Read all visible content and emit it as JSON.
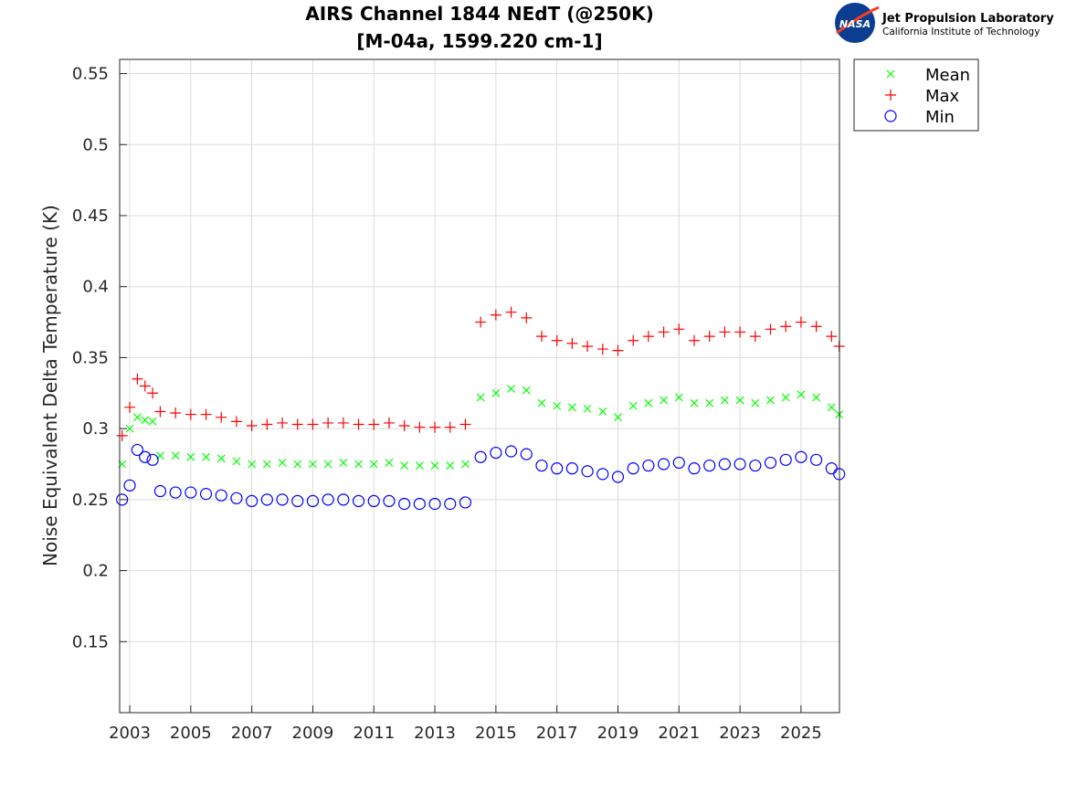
{
  "logo": {
    "badge": "NASA",
    "org": "Jet Propulsion Laboratory",
    "sub": "California Institute of Technology"
  },
  "chart_data": {
    "type": "scatter",
    "title": [
      "AIRS Channel 1844 NEdT (@250K)",
      "[M-04a, 1599.220 cm-1]"
    ],
    "xlabel": "",
    "ylabel": "Noise Equivalent Delta Temperature (K)",
    "xlim": [
      2002.67,
      2026.26
    ],
    "ylim": [
      0.1,
      0.56
    ],
    "xticks": [
      2003,
      2005,
      2007,
      2009,
      2011,
      2013,
      2015,
      2017,
      2019,
      2021,
      2023,
      2025
    ],
    "yticks": [
      0.15,
      0.2,
      0.25,
      0.3,
      0.35,
      0.4,
      0.45,
      0.5,
      0.55
    ],
    "ytick_labels": [
      "0.15",
      "0.2",
      "0.25",
      "0.3",
      "0.35",
      "0.4",
      "0.45",
      "0.5",
      "0.55"
    ],
    "grid": true,
    "legend_position": "outside-top-right",
    "x": [
      2002.75,
      2003,
      2003.25,
      2003.5,
      2003.75,
      2004,
      2004.5,
      2005,
      2005.5,
      2006,
      2006.5,
      2007,
      2007.5,
      2008,
      2008.5,
      2009,
      2009.5,
      2010,
      2010.5,
      2011,
      2011.5,
      2012,
      2012.5,
      2013,
      2013.5,
      2014,
      2014.5,
      2015,
      2015.5,
      2016,
      2016.5,
      2017,
      2017.5,
      2018,
      2018.5,
      2019,
      2019.5,
      2020,
      2020.5,
      2021,
      2021.5,
      2022,
      2022.5,
      2023,
      2023.5,
      2024,
      2024.5,
      2025,
      2025.5,
      2026,
      2026.25
    ],
    "series": [
      {
        "name": "Mean",
        "marker": "x",
        "color": "#00ff00",
        "values": [
          0.275,
          0.3,
          0.308,
          0.306,
          0.305,
          0.281,
          0.281,
          0.28,
          0.28,
          0.279,
          0.277,
          0.275,
          0.275,
          0.276,
          0.275,
          0.275,
          0.275,
          0.276,
          0.275,
          0.275,
          0.276,
          0.274,
          0.274,
          0.274,
          0.274,
          0.275,
          0.322,
          0.325,
          0.328,
          0.327,
          0.318,
          0.316,
          0.315,
          0.314,
          0.312,
          0.308,
          0.316,
          0.318,
          0.32,
          0.322,
          0.318,
          0.318,
          0.32,
          0.32,
          0.318,
          0.32,
          0.322,
          0.324,
          0.322,
          0.315,
          0.31
        ]
      },
      {
        "name": "Max",
        "marker": "+",
        "color": "#ff0000",
        "values": [
          0.295,
          0.315,
          0.335,
          0.33,
          0.325,
          0.312,
          0.311,
          0.31,
          0.31,
          0.308,
          0.305,
          0.302,
          0.303,
          0.304,
          0.303,
          0.303,
          0.304,
          0.304,
          0.303,
          0.303,
          0.304,
          0.302,
          0.301,
          0.301,
          0.301,
          0.303,
          0.375,
          0.38,
          0.382,
          0.378,
          0.365,
          0.362,
          0.36,
          0.358,
          0.356,
          0.355,
          0.362,
          0.365,
          0.368,
          0.37,
          0.362,
          0.365,
          0.368,
          0.368,
          0.365,
          0.37,
          0.372,
          0.375,
          0.372,
          0.365,
          0.358
        ]
      },
      {
        "name": "Min",
        "marker": "o",
        "color": "#0000ff",
        "values": [
          0.25,
          0.26,
          0.285,
          0.28,
          0.278,
          0.256,
          0.255,
          0.255,
          0.254,
          0.253,
          0.251,
          0.249,
          0.25,
          0.25,
          0.249,
          0.249,
          0.25,
          0.25,
          0.249,
          0.249,
          0.249,
          0.247,
          0.247,
          0.247,
          0.247,
          0.248,
          0.28,
          0.283,
          0.284,
          0.282,
          0.274,
          0.272,
          0.272,
          0.27,
          0.268,
          0.266,
          0.272,
          0.274,
          0.275,
          0.276,
          0.272,
          0.274,
          0.275,
          0.275,
          0.274,
          0.276,
          0.278,
          0.28,
          0.278,
          0.272,
          0.268
        ]
      }
    ]
  }
}
